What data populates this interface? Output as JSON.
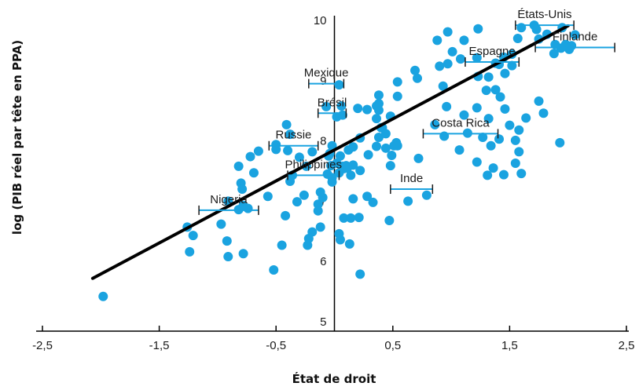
{
  "chart_data": {
    "type": "scatter",
    "title": "",
    "xlabel": "État de droit",
    "ylabel": "log (PIB réel par tête en PPA)",
    "xlim": [
      -2.5,
      2.5
    ],
    "ylim": [
      5,
      10
    ],
    "x_ticks": [
      -2.5,
      -1.5,
      -0.5,
      0.5,
      1.5,
      2.5
    ],
    "x_tick_labels": [
      "-2,5",
      "-1,5",
      "-0,5",
      "0,5",
      "1,5",
      "2,5"
    ],
    "y_ticks": [
      5,
      6,
      7,
      8,
      9,
      10
    ],
    "y_tick_labels": [
      "5",
      "6",
      "7",
      "8",
      "9",
      "10"
    ],
    "grid": false,
    "point_color": "#1aa3e0",
    "trend_color": "#000000",
    "trend_line": {
      "x": [
        -2.07,
        2.0
      ],
      "y": [
        5.72,
        9.91
      ]
    },
    "points": [
      [
        -1.98,
        5.42
      ],
      [
        -1.26,
        6.57
      ],
      [
        -1.24,
        6.16
      ],
      [
        -1.21,
        6.43
      ],
      [
        -0.97,
        6.62
      ],
      [
        -0.92,
        6.34
      ],
      [
        -0.91,
        6.08
      ],
      [
        -0.91,
        7.0
      ],
      [
        -0.78,
        6.13
      ],
      [
        -0.82,
        6.86
      ],
      [
        -0.78,
        6.93
      ],
      [
        -0.74,
        6.88
      ],
      [
        -0.8,
        7.3
      ],
      [
        -0.82,
        7.58
      ],
      [
        -0.79,
        7.2
      ],
      [
        -0.69,
        7.47
      ],
      [
        -0.72,
        7.74
      ],
      [
        -0.65,
        7.83
      ],
      [
        -0.57,
        7.08
      ],
      [
        -0.52,
        5.86
      ],
      [
        -0.5,
        7.86
      ],
      [
        -0.5,
        7.94
      ],
      [
        -0.45,
        6.27
      ],
      [
        -0.42,
        6.76
      ],
      [
        -0.38,
        7.33
      ],
      [
        -0.36,
        7.43
      ],
      [
        -0.4,
        7.84
      ],
      [
        -0.38,
        8.11
      ],
      [
        -0.41,
        8.27
      ],
      [
        -0.32,
        6.99
      ],
      [
        -0.3,
        7.73
      ],
      [
        -0.26,
        7.1
      ],
      [
        -0.24,
        7.58
      ],
      [
        -0.23,
        6.27
      ],
      [
        -0.22,
        6.38
      ],
      [
        -0.19,
        6.49
      ],
      [
        -0.19,
        7.82
      ],
      [
        -0.14,
        6.84
      ],
      [
        -0.14,
        6.95
      ],
      [
        -0.12,
        6.57
      ],
      [
        -0.1,
        7.06
      ],
      [
        -0.12,
        7.15
      ],
      [
        -0.06,
        7.45
      ],
      [
        -0.04,
        7.79
      ],
      [
        -0.02,
        7.39
      ],
      [
        -0.03,
        7.59
      ],
      [
        -0.02,
        7.32
      ],
      [
        -0.07,
        8.57
      ],
      [
        0.02,
        8.4
      ],
      [
        0.07,
        8.43
      ],
      [
        0.04,
        6.46
      ],
      [
        0.05,
        6.36
      ],
      [
        0.08,
        6.72
      ],
      [
        0.1,
        7.59
      ],
      [
        0.13,
        6.29
      ],
      [
        0.14,
        6.72
      ],
      [
        0.16,
        7.04
      ],
      [
        0.21,
        6.73
      ],
      [
        0.22,
        7.51
      ],
      [
        0.29,
        7.77
      ],
      [
        0.33,
        6.98
      ],
      [
        0.38,
        8.06
      ],
      [
        0.4,
        8.22
      ],
      [
        0.47,
        6.68
      ],
      [
        0.48,
        7.59
      ],
      [
        0.54,
        8.74
      ],
      [
        0.22,
        5.79
      ],
      [
        0.06,
        8.58
      ],
      [
        0.04,
        8.93
      ],
      [
        0.05,
        7.75
      ],
      [
        0.48,
        8.41
      ],
      [
        0.38,
        8.51
      ],
      [
        0.2,
        8.54
      ],
      [
        0.36,
        8.58
      ],
      [
        0.08,
        7.54
      ],
      [
        0.02,
        7.63
      ],
      [
        0.36,
        8.37
      ],
      [
        0.41,
        8.22
      ],
      [
        0.36,
        7.91
      ],
      [
        0.28,
        8.52
      ],
      [
        0.44,
        8.12
      ],
      [
        0.44,
        7.88
      ],
      [
        0.54,
        7.92
      ],
      [
        0.28,
        7.08
      ],
      [
        0.16,
        7.6
      ],
      [
        0.12,
        7.85
      ],
      [
        0.11,
        7.55
      ],
      [
        0.72,
        7.71
      ],
      [
        0.79,
        7.1
      ],
      [
        0.63,
        7.0
      ],
      [
        0.49,
        7.76
      ],
      [
        0.53,
        7.97
      ],
      [
        -0.05,
        7.75
      ],
      [
        -0.02,
        7.92
      ],
      [
        0.38,
        8.76
      ],
      [
        0.54,
        8.98
      ],
      [
        0.51,
        7.92
      ],
      [
        0.14,
        7.43
      ],
      [
        0.16,
        7.9
      ],
      [
        0.07,
        7.58
      ],
      [
        0.04,
        7.47
      ],
      [
        0.22,
        8.05
      ],
      [
        0.38,
        8.62
      ],
      [
        0.69,
        9.17
      ],
      [
        0.71,
        9.04
      ],
      [
        0.9,
        9.24
      ],
      [
        0.97,
        9.28
      ],
      [
        0.93,
        8.91
      ],
      [
        0.96,
        8.57
      ],
      [
        0.97,
        9.81
      ],
      [
        0.88,
        9.67
      ],
      [
        1.01,
        9.48
      ],
      [
        1.08,
        9.36
      ],
      [
        1.11,
        9.67
      ],
      [
        1.22,
        9.38
      ],
      [
        1.23,
        9.07
      ],
      [
        1.23,
        9.86
      ],
      [
        1.32,
        9.06
      ],
      [
        1.38,
        9.29
      ],
      [
        1.41,
        9.27
      ],
      [
        1.45,
        9.39
      ],
      [
        1.46,
        9.12
      ],
      [
        1.52,
        9.25
      ],
      [
        1.52,
        9.44
      ],
      [
        1.57,
        9.7
      ],
      [
        1.6,
        9.88
      ],
      [
        1.71,
        9.92
      ],
      [
        1.73,
        9.85
      ],
      [
        1.75,
        9.69
      ],
      [
        1.88,
        9.45
      ],
      [
        1.82,
        9.77
      ],
      [
        1.94,
        9.54
      ],
      [
        2.03,
        9.58
      ],
      [
        1.98,
        9.6
      ],
      [
        1.89,
        9.6
      ],
      [
        1.95,
        9.88
      ],
      [
        2.06,
        9.76
      ],
      [
        2.01,
        9.52
      ],
      [
        1.3,
        8.84
      ],
      [
        1.11,
        8.43
      ],
      [
        0.94,
        8.08
      ],
      [
        0.86,
        8.27
      ],
      [
        1.07,
        7.85
      ],
      [
        1.14,
        8.13
      ],
      [
        1.22,
        8.55
      ],
      [
        1.46,
        8.53
      ],
      [
        1.5,
        8.26
      ],
      [
        1.27,
        8.06
      ],
      [
        1.22,
        7.65
      ],
      [
        1.36,
        7.55
      ],
      [
        1.32,
        8.37
      ],
      [
        1.55,
        8.01
      ],
      [
        1.58,
        7.82
      ],
      [
        1.41,
        8.03
      ],
      [
        1.34,
        7.92
      ],
      [
        1.58,
        8.18
      ],
      [
        1.31,
        7.43
      ],
      [
        1.45,
        7.44
      ],
      [
        1.55,
        7.63
      ],
      [
        1.6,
        7.46
      ],
      [
        1.64,
        8.38
      ],
      [
        1.42,
        8.73
      ],
      [
        1.38,
        8.85
      ],
      [
        1.75,
        8.66
      ],
      [
        1.79,
        8.46
      ],
      [
        1.93,
        7.97
      ]
    ],
    "annotations": [
      {
        "label": "États-Unis",
        "x_range": [
          1.55,
          2.05
        ],
        "y": 9.92
      },
      {
        "label": "Espagne",
        "x_range": [
          1.12,
          1.58
        ],
        "y": 9.31
      },
      {
        "label": "Finlande",
        "x_range": [
          1.72,
          2.4
        ],
        "y": 9.55
      },
      {
        "label": "Mexique",
        "x_range": [
          -0.22,
          0.08
        ],
        "y": 8.95
      },
      {
        "label": "Brésil",
        "x_range": [
          -0.14,
          0.1
        ],
        "y": 8.46
      },
      {
        "label": "Costa Rica",
        "x_range": [
          0.76,
          1.4
        ],
        "y": 8.12
      },
      {
        "label": "Russie",
        "x_range": [
          -0.56,
          -0.14
        ],
        "y": 7.92
      },
      {
        "label": "Philippines",
        "x_range": [
          -0.4,
          0.04
        ],
        "y": 7.43
      },
      {
        "label": "Inde",
        "x_range": [
          0.48,
          0.84
        ],
        "y": 7.2
      },
      {
        "label": "Nigeria",
        "x_range": [
          -1.16,
          -0.65
        ],
        "y": 6.85
      }
    ]
  }
}
